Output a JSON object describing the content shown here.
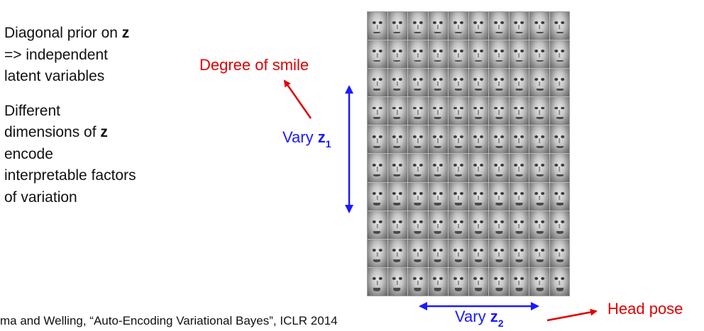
{
  "left_text": {
    "line1": "Diagonal prior on ",
    "line1_bold": "z",
    "line2": "=> independent",
    "line3": "latent variables",
    "line4": "Different",
    "line5": "dimensions of ",
    "line5_bold": "z",
    "line6": "encode",
    "line7": "interpretable factors",
    "line8": "of variation"
  },
  "labels": {
    "smile": "Degree of smile",
    "head_pose": "Head pose",
    "vary_z1_prefix": "Vary ",
    "vary_z1_var": "z",
    "vary_z1_sub": "1",
    "vary_z2_prefix": "Vary ",
    "vary_z2_var": "z",
    "vary_z2_sub": "2"
  },
  "citation": "ma and Welling, “Auto-Encoding Variational Bayes”, ICLR 2014",
  "colors": {
    "red": "#e00000",
    "blue": "#1a1aff",
    "text": "#111111"
  },
  "face_grid": {
    "rows": 10,
    "cols": 10
  }
}
